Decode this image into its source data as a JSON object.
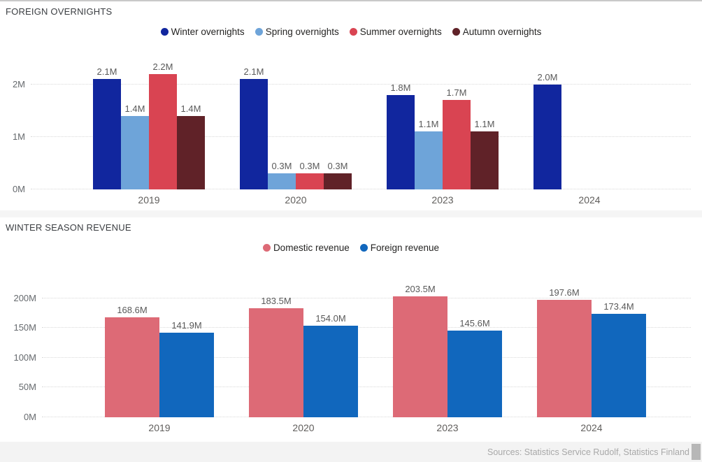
{
  "chart_data": [
    {
      "type": "bar",
      "title": "FOREIGN OVERNIGHTS",
      "categories": [
        "2019",
        "2020",
        "2023",
        "2024"
      ],
      "unit": "M",
      "series": [
        {
          "name": "Winter overnights",
          "color": "#11269e",
          "values": [
            2.1,
            2.1,
            1.8,
            2.0
          ]
        },
        {
          "name": "Spring overnights",
          "color": "#6ea4d9",
          "values": [
            1.4,
            0.3,
            1.1,
            null
          ]
        },
        {
          "name": "Summer overnights",
          "color": "#d94452",
          "values": [
            2.2,
            0.3,
            1.7,
            null
          ]
        },
        {
          "name": "Autumn overnights",
          "color": "#602228",
          "values": [
            1.4,
            0.3,
            1.1,
            null
          ]
        }
      ],
      "data_labels": [
        [
          "2.1M",
          "2.1M",
          "1.8M",
          "2.0M"
        ],
        [
          "1.4M",
          "0.3M",
          "1.1M",
          null
        ],
        [
          "2.2M",
          "0.3M",
          "1.7M",
          null
        ],
        [
          "1.4M",
          "0.3M",
          "1.1M",
          null
        ]
      ],
      "y_ticks": [
        {
          "value": 0,
          "label": "0M"
        },
        {
          "value": 1,
          "label": "1M"
        },
        {
          "value": 2,
          "label": "2M"
        }
      ],
      "ylim": [
        0,
        2.6
      ],
      "xlabel": "",
      "ylabel": "",
      "grid": "horizontal-dotted",
      "legend_position": "top-center"
    },
    {
      "type": "bar",
      "title": "WINTER SEASON REVENUE",
      "categories": [
        "2019",
        "2020",
        "2023",
        "2024"
      ],
      "unit": "M",
      "series": [
        {
          "name": "Domestic revenue",
          "color": "#dd6a76",
          "values": [
            168.6,
            183.5,
            203.5,
            197.6
          ]
        },
        {
          "name": "Foreign revenue",
          "color": "#1167bd",
          "values": [
            141.9,
            154.0,
            145.6,
            173.4
          ]
        }
      ],
      "data_labels": [
        [
          "168.6M",
          "183.5M",
          "203.5M",
          "197.6M"
        ],
        [
          "141.9M",
          "154.0M",
          "145.6M",
          "173.4M"
        ]
      ],
      "y_ticks": [
        {
          "value": 0,
          "label": "0M"
        },
        {
          "value": 50,
          "label": "50M"
        },
        {
          "value": 100,
          "label": "100M"
        },
        {
          "value": 150,
          "label": "150M"
        },
        {
          "value": 200,
          "label": "200M"
        }
      ],
      "ylim": [
        0,
        235
      ],
      "xlabel": "",
      "ylabel": "",
      "grid": "horizontal-dotted",
      "legend_position": "top-center"
    }
  ],
  "footer": {
    "sources": "Sources: Statistics Service Rudolf, Statistics Finland"
  }
}
